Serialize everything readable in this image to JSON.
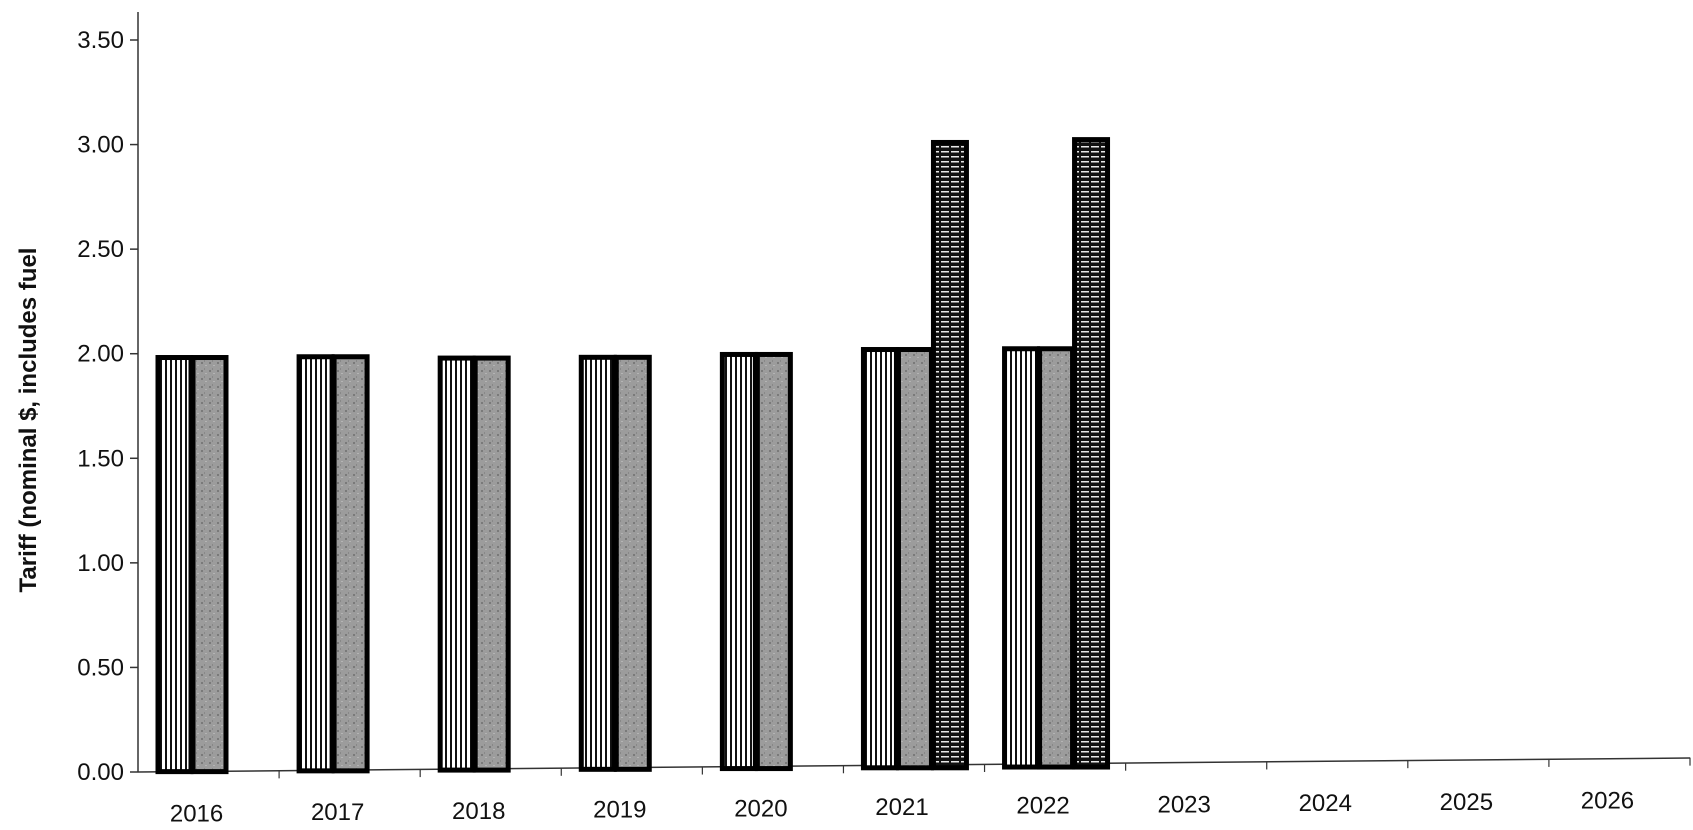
{
  "chart_data": {
    "type": "bar",
    "title": "",
    "xlabel": "",
    "ylabel": "Tariff (nominal $, includes fuel",
    "ylim": [
      0,
      3.5
    ],
    "yticks": [
      "0.00",
      "0.50",
      "1.00",
      "1.50",
      "2.00",
      "2.50",
      "3.00",
      "3.50"
    ],
    "categories": [
      "2016",
      "2017",
      "2018",
      "2019",
      "2020",
      "2021",
      "2022",
      "2023",
      "2024",
      "2025",
      "2026"
    ],
    "series": [
      {
        "values": [
          1.98,
          1.98,
          1.97,
          1.97,
          1.98,
          2.0,
          2.0,
          null,
          null,
          null,
          null
        ]
      },
      {
        "values": [
          1.98,
          1.98,
          1.97,
          1.97,
          1.98,
          2.0,
          2.0,
          null,
          null,
          null,
          null
        ]
      },
      {
        "values": [
          null,
          null,
          null,
          null,
          null,
          2.99,
          3.0,
          null,
          null,
          null,
          null
        ]
      }
    ],
    "series_style": [
      {
        "fill": "vertical-stripes",
        "color": "#ffffff",
        "stroke": "#000000"
      },
      {
        "fill": "grey-texture",
        "color": "#9a9a9a",
        "stroke": "#000000"
      },
      {
        "fill": "horizontal-stripes",
        "color": "#111111",
        "stroke": "#000000"
      }
    ],
    "grid": false,
    "legend": "none"
  }
}
